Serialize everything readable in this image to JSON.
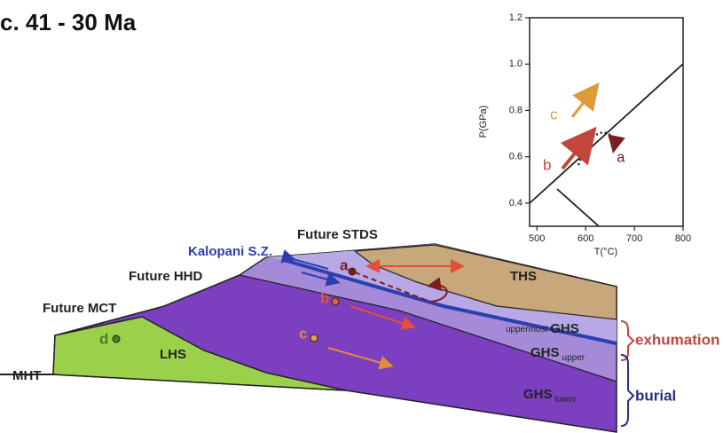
{
  "title": "c. 41 - 30 Ma",
  "inset": {
    "y_label": "P(GPa)",
    "x_label": "T(°C)",
    "xlim": [
      485,
      800
    ],
    "xticks": [
      500,
      600,
      700,
      800
    ],
    "ylim": [
      0.3,
      1.2
    ],
    "yticks": [
      0.4,
      0.6,
      0.8,
      {
        "value": 1,
        "label": "1.0"
      },
      1.2
    ],
    "paths": [
      "a",
      "b",
      "c"
    ]
  },
  "section": {
    "structures": [
      "Future STDS",
      "Kalopani S.Z.",
      "Future HHD",
      "Future MCT",
      "MHT"
    ],
    "units": {
      "THS": "THS",
      "LHS": "LHS",
      "uppermost": {
        "qualifier": "uppermost",
        "name": "GHS"
      },
      "upper": {
        "name": "GHS",
        "qualifier": "upper"
      },
      "lower": {
        "name": "GHS",
        "qualifier": "lower"
      }
    },
    "points": [
      "a",
      "b",
      "c",
      "d"
    ],
    "brackets": [
      "exhumation",
      "burial"
    ]
  }
}
